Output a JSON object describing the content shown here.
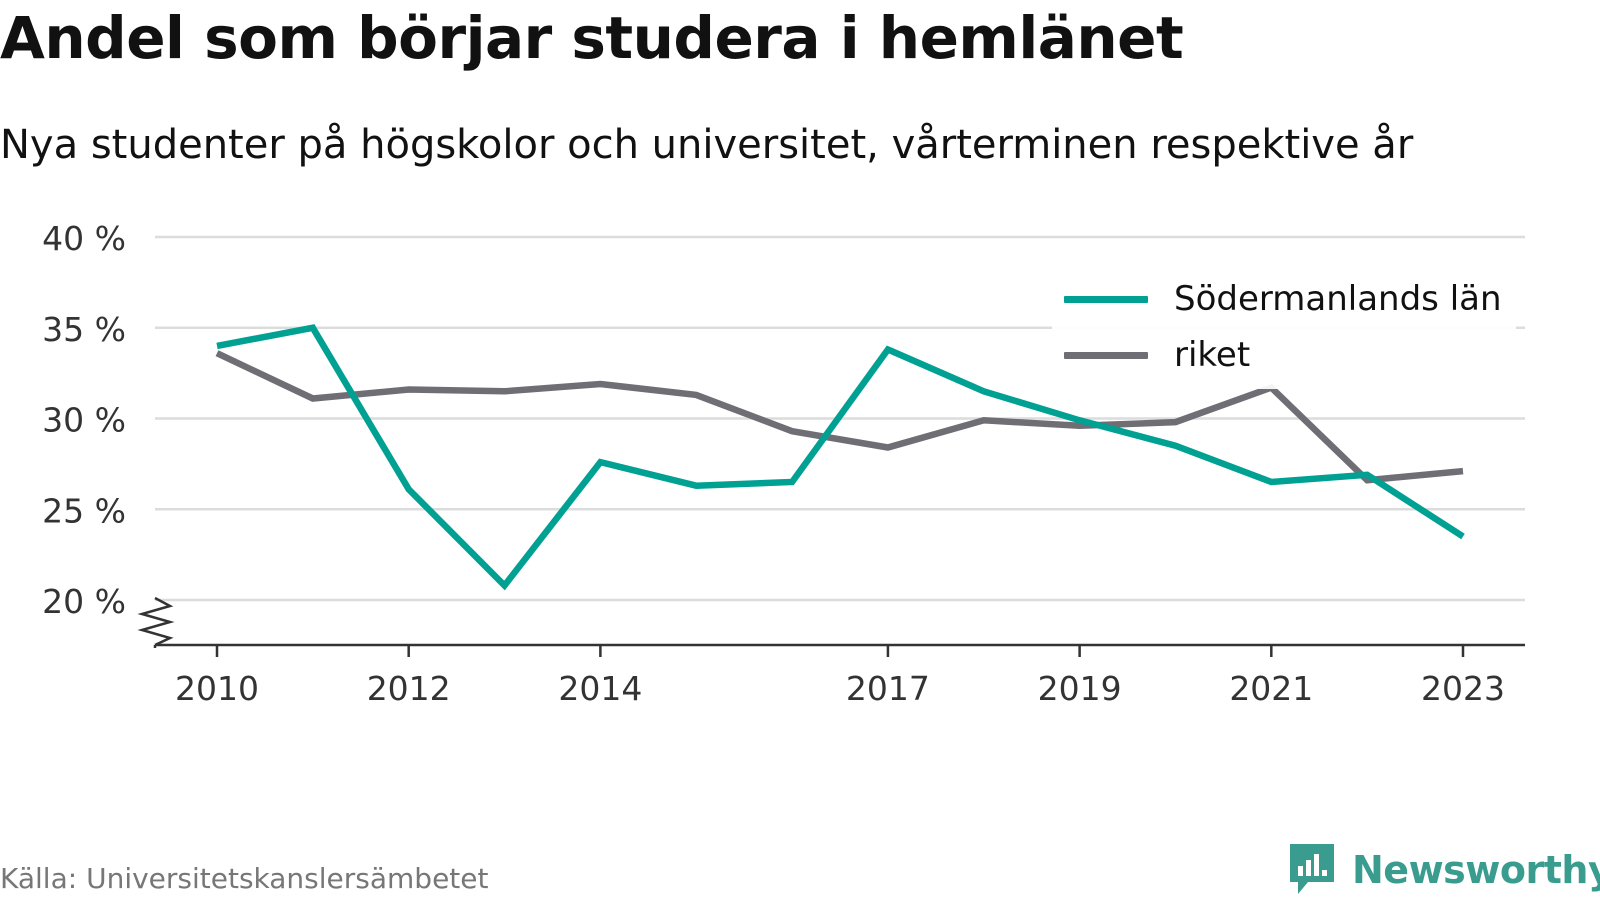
{
  "title": "Andel som börjar studera i hemlänet",
  "subtitle": "Nya studenter på högskolor och universitet, vårterminen respektive år",
  "source": "Källa: Universitetskanslersämbetet",
  "brand": {
    "name": "Newsworthy",
    "icon": "newsworthy-logo-icon",
    "color": "#3a9c8e"
  },
  "chart_data": {
    "type": "line",
    "title": "Andel som börjar studera i hemlänet",
    "subtitle": "Nya studenter på högskolor och universitet, vårterminen respektive år",
    "xlabel": "",
    "ylabel": "",
    "x": [
      2010,
      2011,
      2012,
      2013,
      2014,
      2015,
      2016,
      2017,
      2018,
      2019,
      2020,
      2021,
      2022,
      2023
    ],
    "x_tick_labels": [
      "2010",
      "2012",
      "2014",
      "2017",
      "2019",
      "2021",
      "2023"
    ],
    "y_tick_labels": [
      "40 %",
      "35 %",
      "30 %",
      "25 %",
      "20 %"
    ],
    "y_ticks": [
      40,
      35,
      30,
      25,
      20
    ],
    "ylim": [
      17.6,
      41
    ],
    "xlim": [
      2009.4,
      2023.65
    ],
    "y_axis_break": true,
    "grid": true,
    "legend_position": "top-right",
    "series": [
      {
        "name": "Södermanlands län",
        "color": "#00a193",
        "values": [
          34.0,
          35.0,
          26.1,
          20.8,
          27.6,
          26.3,
          26.5,
          33.8,
          31.5,
          29.9,
          28.5,
          26.5,
          26.9,
          23.5
        ]
      },
      {
        "name": "riket",
        "color": "#6e6e74",
        "values": [
          33.6,
          31.1,
          31.6,
          31.5,
          31.9,
          31.3,
          29.3,
          28.4,
          29.9,
          29.6,
          29.8,
          31.7,
          26.6,
          27.1
        ]
      }
    ]
  }
}
